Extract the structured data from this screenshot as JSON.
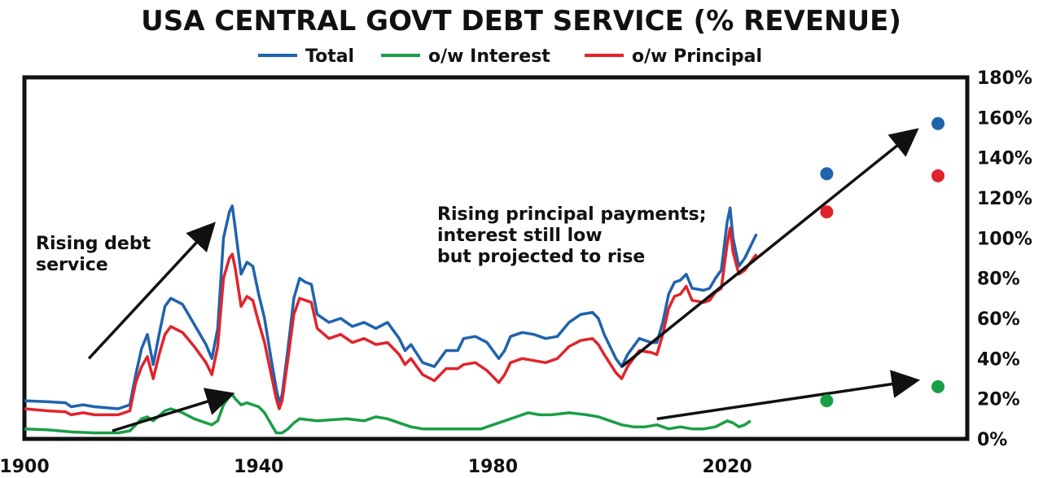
{
  "chart_data": {
    "type": "line",
    "title": "USA CENTRAL GOVT DEBT SERVICE (% REVENUE)",
    "xlabel": "",
    "ylabel": "",
    "xlim": [
      1900,
      2061
    ],
    "ylim": [
      0,
      180
    ],
    "x_ticks": [
      1900,
      1940,
      1980,
      2020
    ],
    "y_ticks": [
      0,
      20,
      40,
      60,
      80,
      100,
      120,
      140,
      160,
      180
    ],
    "y_tick_labels": [
      "0%",
      "20%",
      "40%",
      "60%",
      "80%",
      "100%",
      "120%",
      "140%",
      "160%",
      "180%"
    ],
    "y_axis_side": "right",
    "grid": false,
    "legend_placement": "top-center",
    "series": [
      {
        "name": "Total",
        "color": "#1f63ad",
        "points": [
          [
            1900,
            19
          ],
          [
            1904,
            18.5
          ],
          [
            1907,
            18
          ],
          [
            1908,
            16
          ],
          [
            1910,
            17
          ],
          [
            1912,
            16
          ],
          [
            1914,
            15.5
          ],
          [
            1916,
            15
          ],
          [
            1918,
            17
          ],
          [
            1919,
            32
          ],
          [
            1920,
            45
          ],
          [
            1921,
            52
          ],
          [
            1922,
            37
          ],
          [
            1923,
            52
          ],
          [
            1924,
            66
          ],
          [
            1925,
            70
          ],
          [
            1927,
            67
          ],
          [
            1929,
            57
          ],
          [
            1931,
            47
          ],
          [
            1932,
            40
          ],
          [
            1933,
            55
          ],
          [
            1934,
            100
          ],
          [
            1935,
            113
          ],
          [
            1935.5,
            116
          ],
          [
            1936,
            105
          ],
          [
            1937,
            82
          ],
          [
            1938,
            88
          ],
          [
            1939,
            86
          ],
          [
            1940,
            72
          ],
          [
            1941,
            60
          ],
          [
            1942,
            42
          ],
          [
            1943,
            25
          ],
          [
            1943.5,
            18
          ],
          [
            1944,
            22
          ],
          [
            1945,
            45
          ],
          [
            1946,
            70
          ],
          [
            1947,
            80
          ],
          [
            1948,
            78
          ],
          [
            1949,
            77
          ],
          [
            1950,
            62
          ],
          [
            1952,
            58
          ],
          [
            1954,
            60
          ],
          [
            1956,
            56
          ],
          [
            1958,
            58
          ],
          [
            1960,
            55
          ],
          [
            1962,
            58
          ],
          [
            1964,
            50
          ],
          [
            1965,
            44
          ],
          [
            1966,
            47
          ],
          [
            1968,
            38
          ],
          [
            1970,
            36
          ],
          [
            1972,
            44
          ],
          [
            1974,
            44
          ],
          [
            1975,
            50
          ],
          [
            1977,
            51
          ],
          [
            1979,
            48
          ],
          [
            1980,
            44
          ],
          [
            1981,
            40
          ],
          [
            1982,
            44
          ],
          [
            1983,
            51
          ],
          [
            1985,
            53
          ],
          [
            1987,
            52
          ],
          [
            1989,
            50
          ],
          [
            1991,
            51
          ],
          [
            1993,
            58
          ],
          [
            1995,
            62
          ],
          [
            1997,
            63
          ],
          [
            1998,
            60
          ],
          [
            1999,
            52
          ],
          [
            2001,
            40
          ],
          [
            2002,
            36
          ],
          [
            2003,
            42
          ],
          [
            2005,
            50
          ],
          [
            2007,
            48
          ],
          [
            2008,
            48
          ],
          [
            2009,
            58
          ],
          [
            2010,
            72
          ],
          [
            2011,
            78
          ],
          [
            2012,
            79
          ],
          [
            2013,
            82
          ],
          [
            2014,
            75
          ],
          [
            2016,
            74
          ],
          [
            2017,
            75
          ],
          [
            2018,
            80
          ],
          [
            2019,
            84
          ],
          [
            2020,
            108
          ],
          [
            2020.5,
            115
          ],
          [
            2021,
            100
          ],
          [
            2022,
            86
          ],
          [
            2023,
            90
          ],
          [
            2024,
            96
          ],
          [
            2025,
            102
          ]
        ]
      },
      {
        "name": "o/w Interest",
        "color": "#1a9e46",
        "points": [
          [
            1900,
            5
          ],
          [
            1904,
            4.5
          ],
          [
            1908,
            3.5
          ],
          [
            1912,
            3
          ],
          [
            1916,
            3
          ],
          [
            1918,
            4
          ],
          [
            1920,
            10
          ],
          [
            1921,
            11
          ],
          [
            1922,
            9
          ],
          [
            1924,
            14
          ],
          [
            1925,
            15
          ],
          [
            1927,
            13
          ],
          [
            1929,
            10
          ],
          [
            1931,
            8
          ],
          [
            1932,
            7
          ],
          [
            1933,
            9
          ],
          [
            1934,
            17
          ],
          [
            1935,
            21
          ],
          [
            1935.5,
            22
          ],
          [
            1936,
            20
          ],
          [
            1937,
            17
          ],
          [
            1938,
            18
          ],
          [
            1939,
            17
          ],
          [
            1940,
            16
          ],
          [
            1941,
            13
          ],
          [
            1942,
            8
          ],
          [
            1943,
            3
          ],
          [
            1944,
            3
          ],
          [
            1945,
            5
          ],
          [
            1946,
            8
          ],
          [
            1947,
            10
          ],
          [
            1950,
            9
          ],
          [
            1955,
            10
          ],
          [
            1958,
            9
          ],
          [
            1960,
            11
          ],
          [
            1962,
            10
          ],
          [
            1964,
            8
          ],
          [
            1966,
            6
          ],
          [
            1968,
            5
          ],
          [
            1970,
            5
          ],
          [
            1974,
            5
          ],
          [
            1978,
            5
          ],
          [
            1980,
            7
          ],
          [
            1982,
            9
          ],
          [
            1984,
            11
          ],
          [
            1986,
            13
          ],
          [
            1988,
            12
          ],
          [
            1990,
            12
          ],
          [
            1993,
            13
          ],
          [
            1996,
            12
          ],
          [
            1998,
            11
          ],
          [
            2000,
            9
          ],
          [
            2002,
            7
          ],
          [
            2004,
            6
          ],
          [
            2006,
            6
          ],
          [
            2008,
            7
          ],
          [
            2010,
            5
          ],
          [
            2012,
            6
          ],
          [
            2014,
            5
          ],
          [
            2016,
            5
          ],
          [
            2018,
            6
          ],
          [
            2020,
            9
          ],
          [
            2021,
            8
          ],
          [
            2022,
            6
          ],
          [
            2023,
            7
          ],
          [
            2024,
            9
          ]
        ]
      },
      {
        "name": "o/w Principal",
        "color": "#e0242c",
        "points": [
          [
            1900,
            15
          ],
          [
            1904,
            14
          ],
          [
            1907,
            13.5
          ],
          [
            1908,
            12
          ],
          [
            1910,
            13
          ],
          [
            1912,
            12
          ],
          [
            1916,
            12
          ],
          [
            1918,
            14
          ],
          [
            1919,
            28
          ],
          [
            1920,
            36
          ],
          [
            1921,
            41
          ],
          [
            1922,
            30
          ],
          [
            1923,
            42
          ],
          [
            1924,
            52
          ],
          [
            1925,
            56
          ],
          [
            1927,
            53
          ],
          [
            1929,
            46
          ],
          [
            1931,
            38
          ],
          [
            1932,
            32
          ],
          [
            1933,
            46
          ],
          [
            1934,
            80
          ],
          [
            1935,
            90
          ],
          [
            1935.5,
            92
          ],
          [
            1936,
            85
          ],
          [
            1937,
            66
          ],
          [
            1938,
            71
          ],
          [
            1939,
            69
          ],
          [
            1940,
            58
          ],
          [
            1941,
            48
          ],
          [
            1942,
            34
          ],
          [
            1943,
            20
          ],
          [
            1943.5,
            15
          ],
          [
            1944,
            19
          ],
          [
            1945,
            40
          ],
          [
            1946,
            62
          ],
          [
            1947,
            70
          ],
          [
            1948,
            69
          ],
          [
            1949,
            68
          ],
          [
            1950,
            55
          ],
          [
            1952,
            50
          ],
          [
            1954,
            52
          ],
          [
            1956,
            48
          ],
          [
            1958,
            50
          ],
          [
            1960,
            47
          ],
          [
            1962,
            48
          ],
          [
            1964,
            42
          ],
          [
            1965,
            37
          ],
          [
            1966,
            40
          ],
          [
            1968,
            32
          ],
          [
            1970,
            29
          ],
          [
            1972,
            35
          ],
          [
            1974,
            35
          ],
          [
            1975,
            37
          ],
          [
            1977,
            38
          ],
          [
            1979,
            34
          ],
          [
            1980,
            31
          ],
          [
            1981,
            28
          ],
          [
            1982,
            32
          ],
          [
            1983,
            38
          ],
          [
            1985,
            40
          ],
          [
            1987,
            39
          ],
          [
            1989,
            38
          ],
          [
            1991,
            40
          ],
          [
            1993,
            46
          ],
          [
            1995,
            49
          ],
          [
            1997,
            50
          ],
          [
            1998,
            47
          ],
          [
            1999,
            42
          ],
          [
            2001,
            33
          ],
          [
            2002,
            30
          ],
          [
            2003,
            36
          ],
          [
            2005,
            44
          ],
          [
            2007,
            43
          ],
          [
            2008,
            42
          ],
          [
            2009,
            52
          ],
          [
            2010,
            65
          ],
          [
            2011,
            71
          ],
          [
            2012,
            72
          ],
          [
            2013,
            76
          ],
          [
            2014,
            69
          ],
          [
            2016,
            68
          ],
          [
            2017,
            69
          ],
          [
            2018,
            73
          ],
          [
            2019,
            75
          ],
          [
            2020,
            97
          ],
          [
            2020.5,
            105
          ],
          [
            2021,
            93
          ],
          [
            2022,
            82
          ],
          [
            2023,
            84
          ],
          [
            2024,
            88
          ],
          [
            2025,
            92
          ]
        ]
      }
    ],
    "projected_points": [
      {
        "series": "Total",
        "x": 2037,
        "y": 132
      },
      {
        "series": "Total",
        "x": 2056,
        "y": 157
      },
      {
        "series": "o/w Principal",
        "x": 2037,
        "y": 113
      },
      {
        "series": "o/w Principal",
        "x": 2056,
        "y": 131
      },
      {
        "series": "o/w Interest",
        "x": 2037,
        "y": 19
      },
      {
        "series": "o/w Interest",
        "x": 2056,
        "y": 26
      }
    ],
    "annotations": [
      {
        "lines": [
          "Rising debt",
          "service"
        ]
      },
      {
        "lines": [
          "Rising principal payments;",
          "interest still low",
          "but projected to rise"
        ]
      }
    ],
    "arrows": [
      {
        "from": [
          1911,
          40
        ],
        "to": [
          1932,
          106
        ]
      },
      {
        "from": [
          1915,
          4
        ],
        "to": [
          1935,
          22
        ]
      },
      {
        "from": [
          2002,
          36
        ],
        "to": [
          2052,
          153
        ]
      },
      {
        "from": [
          2008,
          10
        ],
        "to": [
          2052,
          29
        ]
      }
    ]
  }
}
